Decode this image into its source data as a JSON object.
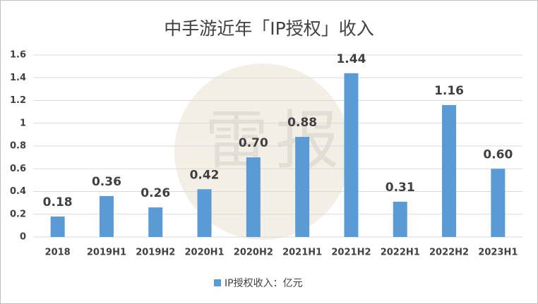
{
  "chart_data": {
    "type": "bar",
    "title": "中手游近年「IP授权」收入",
    "watermark": "雷报",
    "categories": [
      "2018",
      "2019H1",
      "2019H2",
      "2020H1",
      "2020H2",
      "2021H1",
      "2021H2",
      "2022H1",
      "2022H2",
      "2023H1"
    ],
    "series": [
      {
        "name": "IP授权收入：亿元",
        "color": "#5b9bd5",
        "values": [
          0.18,
          0.36,
          0.26,
          0.42,
          0.7,
          0.88,
          1.44,
          0.31,
          1.16,
          0.6
        ],
        "value_labels": [
          "0.18",
          "0.36",
          "0.26",
          "0.42",
          "0.70",
          "0.88",
          "1.44",
          "0.31",
          "1.16",
          "0.60"
        ]
      }
    ],
    "ylim": [
      0,
      1.6
    ],
    "yticks": [
      0,
      0.2,
      0.4,
      0.6,
      0.8,
      1,
      1.2,
      1.4,
      1.6
    ],
    "grid": true,
    "legend": "bottom"
  }
}
